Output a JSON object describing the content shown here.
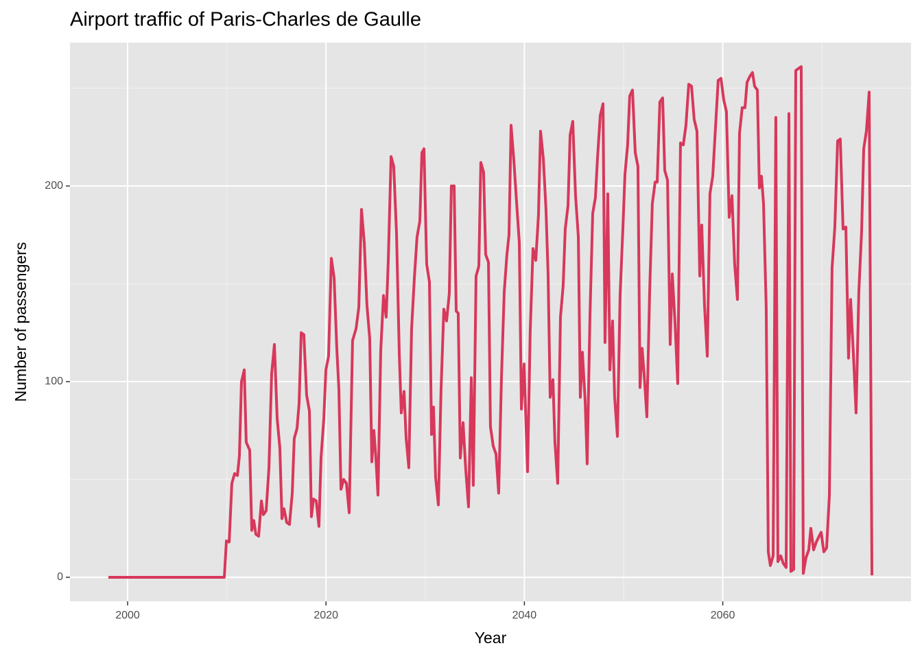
{
  "chart_data": {
    "type": "line",
    "title": "Airport traffic of Paris-Charles de Gaulle",
    "x_label": "Year",
    "y_label": "Number of passengers",
    "xlim": [
      1994.19,
      2078.98
    ],
    "ylim": [
      -12.3,
      273.3
    ],
    "xticks": [
      2000,
      2020,
      2040,
      2060
    ],
    "yticks": [
      0,
      100,
      200
    ],
    "grid": true,
    "series": [
      {
        "name": "Passengers",
        "color": "#d7385b",
        "x": [
          1998.06,
          2009.75,
          2009.96,
          2010.24,
          2010.51,
          2010.79,
          2011.07,
          2011.27,
          2011.48,
          2011.76,
          2011.96,
          2012.31,
          2012.52,
          2012.72,
          2012.93,
          2013.21,
          2013.49,
          2013.69,
          2013.97,
          2014.25,
          2014.52,
          2014.8,
          2015.08,
          2015.35,
          2015.56,
          2015.77,
          2016.04,
          2016.32,
          2016.6,
          2016.8,
          2017.08,
          2017.29,
          2017.5,
          2017.77,
          2018.05,
          2018.33,
          2018.53,
          2018.74,
          2019.02,
          2019.29,
          2019.5,
          2019.78,
          2019.99,
          2020.26,
          2020.54,
          2020.82,
          2021.09,
          2021.3,
          2021.51,
          2021.78,
          2022.06,
          2022.34,
          2022.68,
          2023.03,
          2023.31,
          2023.58,
          2023.86,
          2024.13,
          2024.41,
          2024.62,
          2024.83,
          2025.03,
          2025.24,
          2025.52,
          2025.8,
          2026.07,
          2026.28,
          2026.56,
          2026.83,
          2027.11,
          2027.39,
          2027.59,
          2027.87,
          2028.08,
          2028.35,
          2028.63,
          2028.91,
          2029.18,
          2029.46,
          2029.67,
          2029.88,
          2030.15,
          2030.43,
          2030.64,
          2030.84,
          2031.05,
          2031.33,
          2031.6,
          2031.88,
          2032.16,
          2032.43,
          2032.64,
          2032.92,
          2033.13,
          2033.33,
          2033.54,
          2033.82,
          2034.09,
          2034.37,
          2034.65,
          2034.85,
          2035.13,
          2035.41,
          2035.61,
          2035.89,
          2036.1,
          2036.38,
          2036.58,
          2036.86,
          2037.14,
          2037.41,
          2037.69,
          2037.97,
          2038.24,
          2038.45,
          2038.66,
          2038.94,
          2039.21,
          2039.49,
          2039.7,
          2039.97,
          2040.32,
          2040.59,
          2040.87,
          2041.15,
          2041.42,
          2041.63,
          2041.91,
          2042.18,
          2042.39,
          2042.6,
          2042.88,
          2043.08,
          2043.36,
          2043.64,
          2043.91,
          2044.12,
          2044.4,
          2044.61,
          2044.88,
          2045.16,
          2045.44,
          2045.64,
          2045.85,
          2046.13,
          2046.33,
          2046.61,
          2046.89,
          2047.16,
          2047.37,
          2047.65,
          2047.93,
          2048.13,
          2048.41,
          2048.62,
          2048.89,
          2049.1,
          2049.38,
          2049.65,
          2049.93,
          2050.14,
          2050.41,
          2050.62,
          2050.9,
          2051.18,
          2051.45,
          2051.66,
          2051.87,
          2052.07,
          2052.35,
          2052.63,
          2052.9,
          2053.18,
          2053.39,
          2053.66,
          2053.94,
          2054.15,
          2054.43,
          2054.7,
          2054.91,
          2055.19,
          2055.46,
          2055.74,
          2056.02,
          2056.29,
          2056.57,
          2056.85,
          2057.12,
          2057.4,
          2057.68,
          2057.88,
          2058.16,
          2058.44,
          2058.71,
          2058.99,
          2059.27,
          2059.54,
          2059.82,
          2060.1,
          2060.37,
          2060.65,
          2060.93,
          2061.2,
          2061.48,
          2061.69,
          2061.96,
          2062.24,
          2062.45,
          2062.73,
          2063.0,
          2063.21,
          2063.49,
          2063.69,
          2063.9,
          2064.11,
          2064.38,
          2064.59,
          2064.8,
          2065.08,
          2065.35,
          2065.56,
          2065.84,
          2066.11,
          2066.39,
          2066.67,
          2066.87,
          2067.15,
          2067.36,
          2067.63,
          2067.91,
          2068.12,
          2068.39,
          2068.67,
          2068.88,
          2069.16,
          2069.43,
          2069.71,
          2069.92,
          2070.19,
          2070.47,
          2070.75,
          2071.02,
          2071.3,
          2071.58,
          2071.85,
          2072.13,
          2072.41,
          2072.68,
          2072.89,
          2073.17,
          2073.44,
          2073.72,
          2074.0,
          2074.21,
          2074.48,
          2074.76,
          2075.04
        ],
        "values": [
          0,
          0,
          18.6,
          18,
          48,
          53,
          52,
          62,
          100,
          106,
          69,
          65,
          24,
          29,
          22,
          21,
          39,
          32,
          34,
          56,
          104,
          119,
          81,
          66,
          30,
          35,
          28,
          27,
          43,
          71,
          76,
          89,
          125,
          124,
          93,
          85,
          31,
          40,
          39,
          26,
          61,
          81,
          106,
          113,
          163,
          153,
          117,
          96,
          45,
          50,
          48,
          33,
          121,
          127,
          138,
          188,
          171,
          139,
          122,
          59,
          75,
          61,
          42,
          116,
          144,
          133,
          162,
          215,
          210,
          176,
          114,
          84,
          95,
          71,
          56,
          127,
          153,
          174,
          182,
          217,
          219,
          160,
          151,
          73,
          87,
          51,
          37,
          96,
          137,
          131,
          145,
          200,
          200,
          136,
          135,
          61,
          79,
          55,
          36,
          102,
          47,
          154,
          159,
          212,
          207,
          165,
          161,
          77,
          67,
          63,
          43,
          102,
          146,
          165,
          175,
          231,
          213,
          192,
          171,
          86,
          109,
          54,
          126,
          168,
          162,
          185,
          228,
          214,
          188,
          155,
          92,
          101,
          69,
          48,
          133,
          149,
          178,
          190,
          226,
          233,
          195,
          174,
          92,
          115,
          90,
          58,
          133,
          186,
          194,
          214,
          236,
          242,
          120,
          196,
          106,
          131,
          92,
          72,
          144,
          178,
          206,
          221,
          246,
          249,
          217,
          210,
          97,
          117,
          104,
          82,
          146,
          191,
          202,
          202,
          243,
          245,
          208,
          203,
          119,
          155,
          130,
          99,
          222,
          221,
          231,
          252,
          251,
          234,
          228,
          154,
          180,
          139,
          113,
          196,
          205,
          230,
          254,
          255,
          244,
          238,
          184,
          195,
          160,
          142,
          227,
          240,
          240,
          253,
          256,
          258,
          251,
          249,
          199,
          205,
          191,
          138,
          13,
          6,
          11,
          235,
          8,
          11,
          7,
          5,
          237,
          3,
          4,
          259,
          260,
          261,
          2,
          10,
          14,
          25,
          14,
          18,
          21,
          23,
          13,
          15,
          42,
          158,
          179,
          223,
          224,
          178,
          179,
          112,
          142,
          114,
          84,
          146,
          177,
          219,
          228,
          248,
          1
        ]
      }
    ]
  }
}
